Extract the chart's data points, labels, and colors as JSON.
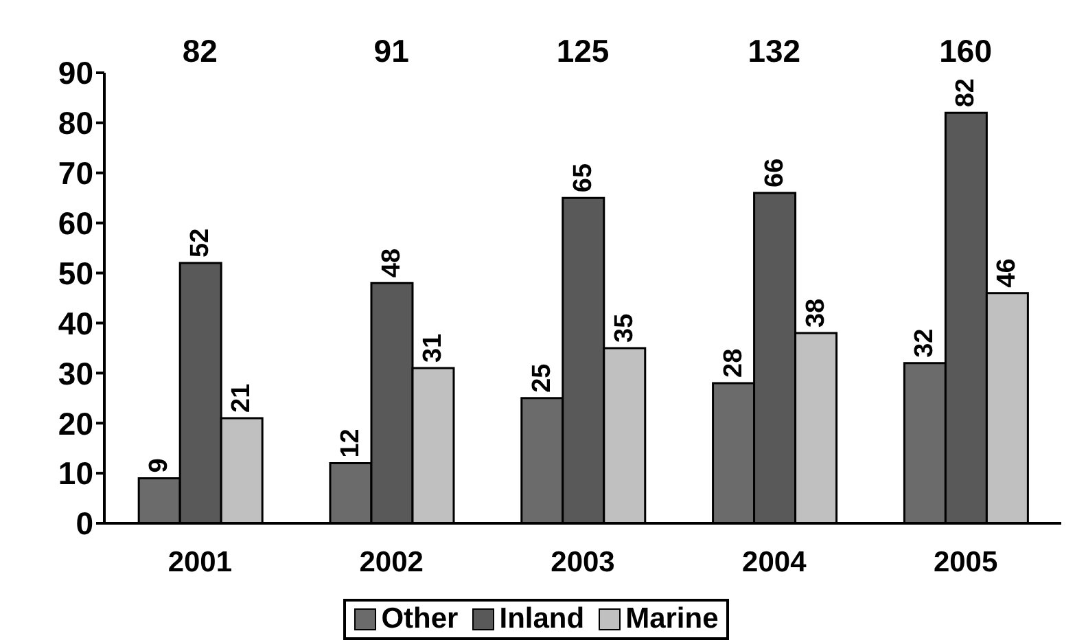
{
  "chart_data": {
    "type": "bar",
    "categories": [
      "2001",
      "2002",
      "2003",
      "2004",
      "2005"
    ],
    "series": [
      {
        "name": "Other",
        "color": "#6b6b6b",
        "values": [
          9,
          12,
          25,
          28,
          32
        ]
      },
      {
        "name": "Inland",
        "color": "#595959",
        "values": [
          52,
          48,
          65,
          66,
          82
        ]
      },
      {
        "name": "Marine",
        "color": "#c0c0c0",
        "values": [
          21,
          31,
          35,
          38,
          46
        ]
      }
    ],
    "ylim": [
      0,
      90
    ],
    "yticks": [
      0,
      10,
      20,
      30,
      40,
      50,
      60,
      70,
      80,
      90
    ],
    "grid": false,
    "legend": "bottom",
    "data_labels": true,
    "annotations": [
      "82",
      "91",
      "125",
      "132",
      "160"
    ]
  }
}
